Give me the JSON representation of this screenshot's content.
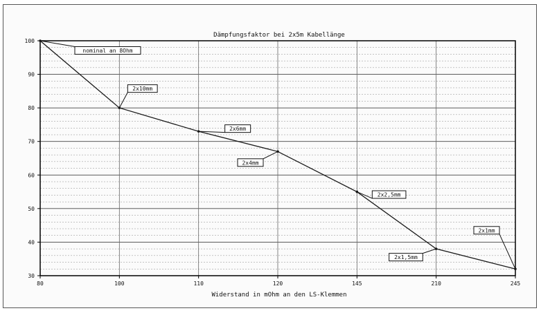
{
  "chart_data": {
    "type": "line",
    "title": "Dämpfungsfaktor bei 2x5m Kabellänge",
    "xlabel": "Widerstand in mOhm an den LS-Klemmen",
    "ylabel": "",
    "x_ticks": [
      "80",
      "100",
      "110",
      "120",
      "145",
      "210",
      "245"
    ],
    "ylim": [
      30,
      100
    ],
    "y_ticks": [
      30,
      40,
      50,
      60,
      70,
      80,
      90,
      100
    ],
    "grid": true,
    "series": [
      {
        "name": "",
        "x": [
          "80",
          "100",
          "110",
          "120",
          "145",
          "210",
          "245"
        ],
        "values": [
          100,
          80,
          73,
          67,
          55,
          38,
          32
        ]
      }
    ],
    "annotations": [
      {
        "text": "nominal an 8Ohm",
        "point_index": 0
      },
      {
        "text": "2x10mm",
        "point_index": 1
      },
      {
        "text": "2x6mm",
        "point_index": 2
      },
      {
        "text": "2x4mm",
        "point_index": 3
      },
      {
        "text": "2x2,5mm",
        "point_index": 4
      },
      {
        "text": "2x1,5mm",
        "point_index": 5
      },
      {
        "text": "2x1mm",
        "point_index": 6
      }
    ],
    "colors": {
      "line": "#1a1a1a",
      "grid": "#8a8a8a",
      "frame": "#000000"
    }
  }
}
